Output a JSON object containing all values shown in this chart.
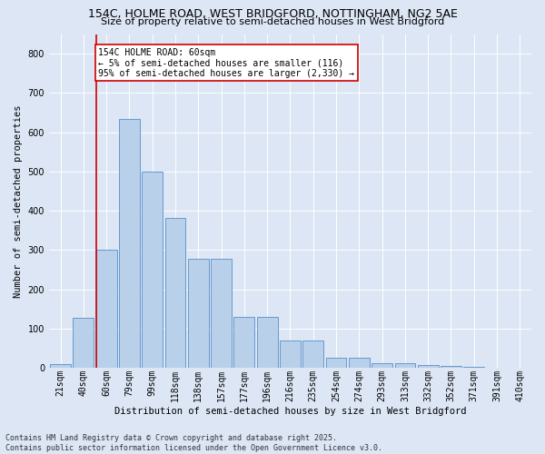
{
  "title1": "154C, HOLME ROAD, WEST BRIDGFORD, NOTTINGHAM, NG2 5AE",
  "title2": "Size of property relative to semi-detached houses in West Bridgford",
  "xlabel": "Distribution of semi-detached houses by size in West Bridgford",
  "ylabel": "Number of semi-detached properties",
  "categories": [
    "21sqm",
    "40sqm",
    "60sqm",
    "79sqm",
    "99sqm",
    "118sqm",
    "138sqm",
    "157sqm",
    "177sqm",
    "196sqm",
    "216sqm",
    "235sqm",
    "254sqm",
    "274sqm",
    "293sqm",
    "313sqm",
    "332sqm",
    "352sqm",
    "371sqm",
    "391sqm",
    "410sqm"
  ],
  "values": [
    10,
    128,
    302,
    635,
    500,
    383,
    278,
    278,
    130,
    130,
    70,
    70,
    25,
    25,
    12,
    12,
    8,
    5,
    3,
    1,
    0
  ],
  "bar_color": "#b8d0ea",
  "bar_edge_color": "#6699cc",
  "vline_color": "#cc0000",
  "vline_index": 2,
  "annotation_title": "154C HOLME ROAD: 60sqm",
  "annotation_line1": "← 5% of semi-detached houses are smaller (116)",
  "annotation_line2": "95% of semi-detached houses are larger (2,330) →",
  "annotation_box_edgecolor": "#cc0000",
  "ylim": [
    0,
    850
  ],
  "yticks": [
    0,
    100,
    200,
    300,
    400,
    500,
    600,
    700,
    800
  ],
  "footer1": "Contains HM Land Registry data © Crown copyright and database right 2025.",
  "footer2": "Contains public sector information licensed under the Open Government Licence v3.0.",
  "bg_color": "#dce6f5",
  "plot_bg_color": "#dce6f5",
  "title_fontsize": 9,
  "subtitle_fontsize": 8,
  "axis_label_fontsize": 7.5,
  "tick_fontsize": 7,
  "annotation_fontsize": 7,
  "footer_fontsize": 6
}
